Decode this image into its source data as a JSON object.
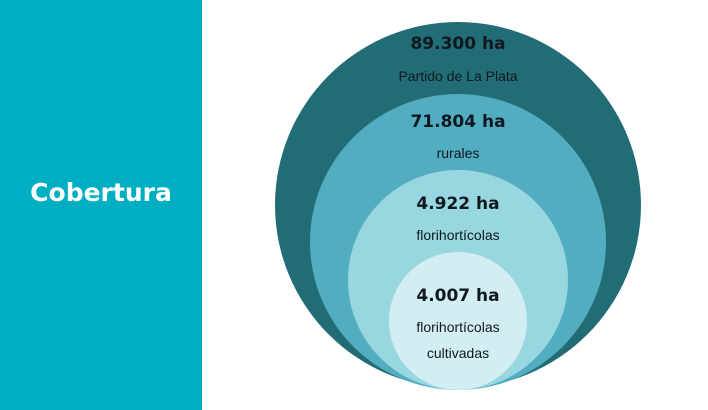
{
  "sidebar": {
    "title": "Cobertura",
    "background_color": "#00aec3"
  },
  "diagram": {
    "type": "nested-circles",
    "levels": [
      {
        "value": "89.300 ha",
        "description_lines": [
          "Partido de La Plata"
        ],
        "color": "#226d75"
      },
      {
        "value": "71.804 ha",
        "description_lines": [
          "rurales"
        ],
        "color": "#52adc1"
      },
      {
        "value": "4.922 ha",
        "description_lines": [
          "florihortícolas"
        ],
        "color": "#98d7e0"
      },
      {
        "value": "4.007 ha",
        "description_lines": [
          "florihortícolas",
          "cultivadas"
        ],
        "color": "#d3eef2"
      }
    ]
  }
}
